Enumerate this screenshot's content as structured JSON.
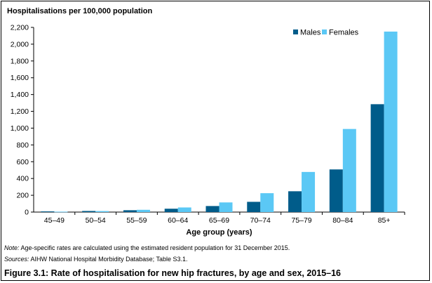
{
  "chart_data": {
    "type": "bar",
    "title": "",
    "ylabel": "Hospitalisations per 100,000 population",
    "xlabel": "Age group (years)",
    "ylim": [
      0,
      2200
    ],
    "yticks": [
      0,
      200,
      400,
      600,
      800,
      1000,
      1200,
      1400,
      1600,
      1800,
      2000,
      2200
    ],
    "ytick_labels": [
      "0",
      "200",
      "400",
      "600",
      "800",
      "1,000",
      "1,200",
      "1,400",
      "1,600",
      "1,800",
      "2,000",
      "2,200"
    ],
    "categories": [
      "45–49",
      "50–54",
      "55–59",
      "60–64",
      "65–69",
      "70–74",
      "75–79",
      "80–84",
      "85+"
    ],
    "series": [
      {
        "name": "Males",
        "color": "#005c8a",
        "values": [
          8,
          13,
          22,
          40,
          72,
          122,
          248,
          508,
          1285
        ]
      },
      {
        "name": "Females",
        "color": "#5bc8f5",
        "values": [
          5,
          12,
          27,
          55,
          115,
          225,
          478,
          990,
          2150
        ]
      }
    ],
    "grid": false,
    "legend": "top-right"
  },
  "notes": {
    "note_label": "Note:",
    "note_text": " Age-specific rates are calculated using the estimated resident population for 31 December 2015.",
    "sources_label": "Sources:",
    "sources_text": " AIHW National Hospital Morbidity Database; Table S3.1."
  },
  "figure_caption": "Figure 3.1: Rate of hospitalisation for new hip fractures, by age and sex, 2015–16"
}
